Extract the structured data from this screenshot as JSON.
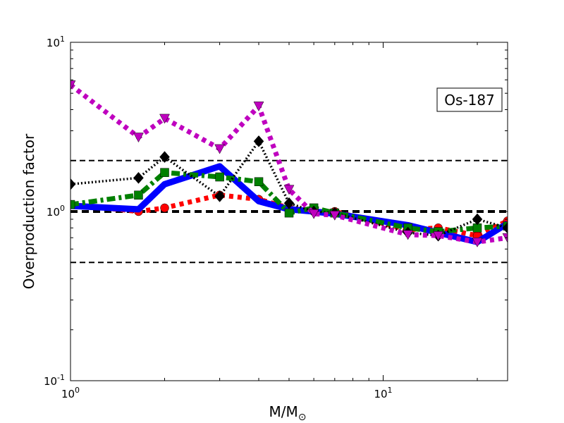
{
  "chart_data": {
    "type": "line",
    "title": "",
    "annotation": "Os-187",
    "xlabel": "M/M",
    "xlabel_subscript": "⊙",
    "ylabel": "Overproduction factor",
    "xscale": "log",
    "yscale": "log",
    "xlim": [
      1,
      25
    ],
    "ylim": [
      0.1,
      10
    ],
    "x_ticks": [
      {
        "base": "10",
        "exp": "0",
        "value": 1
      },
      {
        "base": "10",
        "exp": "1",
        "value": 10
      }
    ],
    "y_ticks": [
      {
        "base": "10",
        "exp": "-1",
        "value": 0.1
      },
      {
        "base": "10",
        "exp": "0",
        "value": 1
      },
      {
        "base": "10",
        "exp": "1",
        "value": 10
      }
    ],
    "reference_lines": [
      {
        "y": 2.0,
        "style": "dashed-thin"
      },
      {
        "y": 1.0,
        "style": "dashed-thick"
      },
      {
        "y": 0.5,
        "style": "dashed-thin"
      }
    ],
    "series": [
      {
        "color": "#ff0000",
        "linestyle": "dotted",
        "marker": "circle",
        "x": [
          1,
          1.65,
          2,
          3,
          4,
          5,
          6,
          7,
          12,
          15,
          20,
          25
        ],
        "y": [
          1.1,
          1.0,
          1.05,
          1.25,
          1.18,
          1.05,
          1.0,
          1.0,
          0.78,
          0.8,
          0.72,
          0.88
        ]
      },
      {
        "color": "#0000ff",
        "linestyle": "solid",
        "marker": "none",
        "x": [
          1,
          1.65,
          2,
          3,
          4,
          5,
          6,
          7,
          12,
          15,
          20,
          25
        ],
        "y": [
          1.08,
          1.03,
          1.45,
          1.85,
          1.15,
          1.03,
          1.0,
          0.97,
          0.83,
          0.75,
          0.66,
          0.85
        ]
      },
      {
        "color": "#008000",
        "linestyle": "dashdot",
        "marker": "square",
        "x": [
          1,
          1.65,
          2,
          3,
          4,
          5,
          6,
          7,
          12,
          15,
          20,
          25
        ],
        "y": [
          1.1,
          1.25,
          1.7,
          1.6,
          1.5,
          0.98,
          1.05,
          0.98,
          0.8,
          0.76,
          0.8,
          0.82
        ]
      },
      {
        "color": "#000000",
        "linestyle": "dotted",
        "marker": "diamond",
        "x": [
          1,
          1.65,
          2,
          3,
          4,
          5,
          6,
          7,
          12,
          15,
          20,
          25
        ],
        "y": [
          1.45,
          1.58,
          2.1,
          1.23,
          2.6,
          1.12,
          1.0,
          0.98,
          0.75,
          0.72,
          0.9,
          0.8
        ]
      },
      {
        "color": "#bf00bf",
        "linestyle": "dotted",
        "marker": "triangle-down",
        "x": [
          1,
          1.65,
          2,
          3,
          4,
          5,
          6,
          7,
          12,
          15,
          20,
          25
        ],
        "y": [
          5.6,
          2.75,
          3.55,
          2.35,
          4.2,
          1.35,
          0.97,
          0.95,
          0.73,
          0.72,
          0.66,
          0.7
        ]
      }
    ]
  }
}
